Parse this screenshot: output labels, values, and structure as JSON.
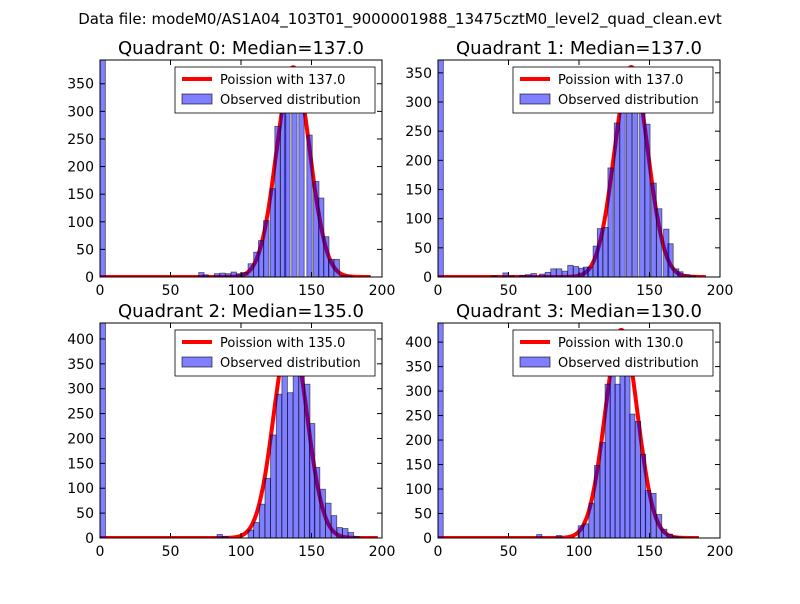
{
  "suptitle": "Data file: modeM0/AS1A04_103T01_9000001988_13475cztM0_level2_quad_clean.evt",
  "colors": {
    "curve": "#ff0000",
    "bar_fill": "#0000ff",
    "bar_edge": "#000000"
  },
  "chart_data": [
    {
      "type": "bar",
      "title": "Quadrant 0: Median=137.0",
      "xlim": [
        0,
        200
      ],
      "ylim": [
        0,
        393
      ],
      "xticks": [
        0,
        50,
        100,
        150,
        200
      ],
      "yticks": [
        0,
        50,
        100,
        150,
        200,
        250,
        300,
        350
      ],
      "legend": {
        "placement": "top-right",
        "entries": [
          "Poission with 137.0",
          "Observed distribution"
        ]
      },
      "poisson": {
        "mean": 137.0,
        "peak": 380,
        "xmax": 192
      },
      "bin_width": 3.8,
      "bins": [
        [
          0,
          393
        ],
        [
          70,
          8
        ],
        [
          73,
          4
        ],
        [
          81,
          6
        ],
        [
          85,
          7
        ],
        [
          89,
          6
        ],
        [
          93,
          9
        ],
        [
          97,
          6
        ],
        [
          100.6,
          8
        ],
        [
          105,
          24
        ],
        [
          109,
          45
        ],
        [
          112.4,
          66
        ],
        [
          116,
          102
        ],
        [
          120.7,
          160
        ],
        [
          124,
          273
        ],
        [
          128,
          373
        ],
        [
          131,
          373
        ],
        [
          136,
          373
        ],
        [
          141,
          340
        ],
        [
          146.7,
          257
        ],
        [
          151.5,
          173
        ],
        [
          155,
          143
        ],
        [
          158.6,
          73
        ],
        [
          162,
          32
        ],
        [
          166,
          32
        ],
        [
          170.4,
          3
        ],
        [
          175,
          2
        ]
      ]
    },
    {
      "type": "bar",
      "title": "Quadrant 1: Median=137.0",
      "xlim": [
        0,
        200
      ],
      "ylim": [
        0,
        372
      ],
      "xticks": [
        0,
        50,
        100,
        150,
        200
      ],
      "yticks": [
        0,
        50,
        100,
        150,
        200,
        250,
        300,
        350
      ],
      "legend": {
        "placement": "top-right",
        "entries": [
          "Poission with 137.0",
          "Observed distribution"
        ]
      },
      "poisson": {
        "mean": 137.0,
        "peak": 360,
        "xmax": 190
      },
      "bin_width": 3.8,
      "bins": [
        [
          0,
          372
        ],
        [
          38,
          2
        ],
        [
          46,
          7
        ],
        [
          50,
          2
        ],
        [
          58,
          3
        ],
        [
          62,
          4
        ],
        [
          66,
          6
        ],
        [
          72,
          5
        ],
        [
          76,
          8
        ],
        [
          80,
          14
        ],
        [
          84,
          14
        ],
        [
          88,
          10
        ],
        [
          92,
          20
        ],
        [
          96,
          18
        ],
        [
          100,
          15
        ],
        [
          103,
          17
        ],
        [
          106,
          17
        ],
        [
          110,
          53
        ],
        [
          113,
          83
        ],
        [
          117,
          85
        ],
        [
          120.5,
          187
        ],
        [
          125,
          264
        ],
        [
          129,
          356
        ],
        [
          133.6,
          356
        ],
        [
          138,
          296
        ],
        [
          143,
          339
        ],
        [
          146.6,
          262
        ],
        [
          151,
          161
        ],
        [
          155,
          117
        ],
        [
          160,
          82
        ],
        [
          163,
          57
        ],
        [
          167,
          14
        ],
        [
          170,
          9
        ],
        [
          175,
          4
        ],
        [
          179,
          2
        ]
      ]
    },
    {
      "type": "bar",
      "title": "Quadrant 2: Median=135.0",
      "xlim": [
        0,
        200
      ],
      "ylim": [
        0,
        432
      ],
      "xticks": [
        0,
        50,
        100,
        150,
        200
      ],
      "yticks": [
        0,
        50,
        100,
        150,
        200,
        250,
        300,
        350,
        400
      ],
      "legend": {
        "placement": "top-right",
        "entries": [
          "Poission with 135.0",
          "Observed distribution"
        ]
      },
      "poisson": {
        "mean": 135.0,
        "peak": 415,
        "xmax": 197
      },
      "bin_width": 3.9,
      "bins": [
        [
          0,
          432
        ],
        [
          83,
          7
        ],
        [
          87,
          3
        ],
        [
          105,
          16
        ],
        [
          109,
          31
        ],
        [
          113,
          68
        ],
        [
          117,
          120
        ],
        [
          121,
          207
        ],
        [
          125,
          289
        ],
        [
          129,
          383
        ],
        [
          133,
          292
        ],
        [
          137,
          416
        ],
        [
          141,
          416
        ],
        [
          145,
          309
        ],
        [
          148.5,
          230
        ],
        [
          152,
          142
        ],
        [
          156,
          98
        ],
        [
          160,
          70
        ],
        [
          164,
          45
        ],
        [
          168,
          21
        ],
        [
          172,
          19
        ],
        [
          176,
          11
        ],
        [
          180,
          3
        ]
      ]
    },
    {
      "type": "bar",
      "title": "Quadrant 3: Median=130.0",
      "xlim": [
        0,
        200
      ],
      "ylim": [
        0,
        439
      ],
      "xticks": [
        0,
        50,
        100,
        150,
        200
      ],
      "yticks": [
        0,
        50,
        100,
        150,
        200,
        250,
        300,
        350,
        400
      ],
      "legend": {
        "placement": "top-right",
        "entries": [
          "Poission with 130.0",
          "Observed distribution"
        ]
      },
      "poisson": {
        "mean": 130.0,
        "peak": 425,
        "xmax": 185
      },
      "bin_width": 3.7,
      "bins": [
        [
          0,
          439
        ],
        [
          70,
          7
        ],
        [
          84,
          5
        ],
        [
          99.4,
          25
        ],
        [
          103,
          29
        ],
        [
          107,
          71
        ],
        [
          111,
          148
        ],
        [
          115,
          195
        ],
        [
          118.5,
          314
        ],
        [
          122,
          335
        ],
        [
          125.5,
          314
        ],
        [
          129,
          420
        ],
        [
          132.5,
          355
        ],
        [
          136,
          253
        ],
        [
          140,
          238
        ],
        [
          143.6,
          171
        ],
        [
          147,
          97
        ],
        [
          151,
          91
        ],
        [
          155,
          48
        ],
        [
          158.6,
          18
        ],
        [
          162.6,
          8
        ],
        [
          166.5,
          3
        ],
        [
          170,
          2
        ],
        [
          174,
          1
        ],
        [
          178,
          1
        ]
      ]
    }
  ]
}
